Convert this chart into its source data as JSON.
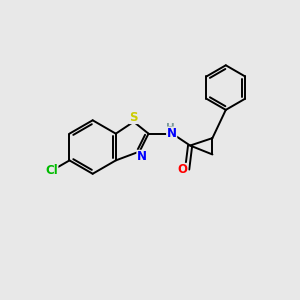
{
  "background_color": "#e8e8e8",
  "bond_color": "#000000",
  "atom_colors": {
    "Cl": "#00bb00",
    "S": "#cccc00",
    "N": "#0000ff",
    "O": "#ff0000",
    "H": "#7a9999",
    "C": "#000000"
  },
  "figsize": [
    3.0,
    3.0
  ],
  "dpi": 100,
  "lw": 1.4
}
